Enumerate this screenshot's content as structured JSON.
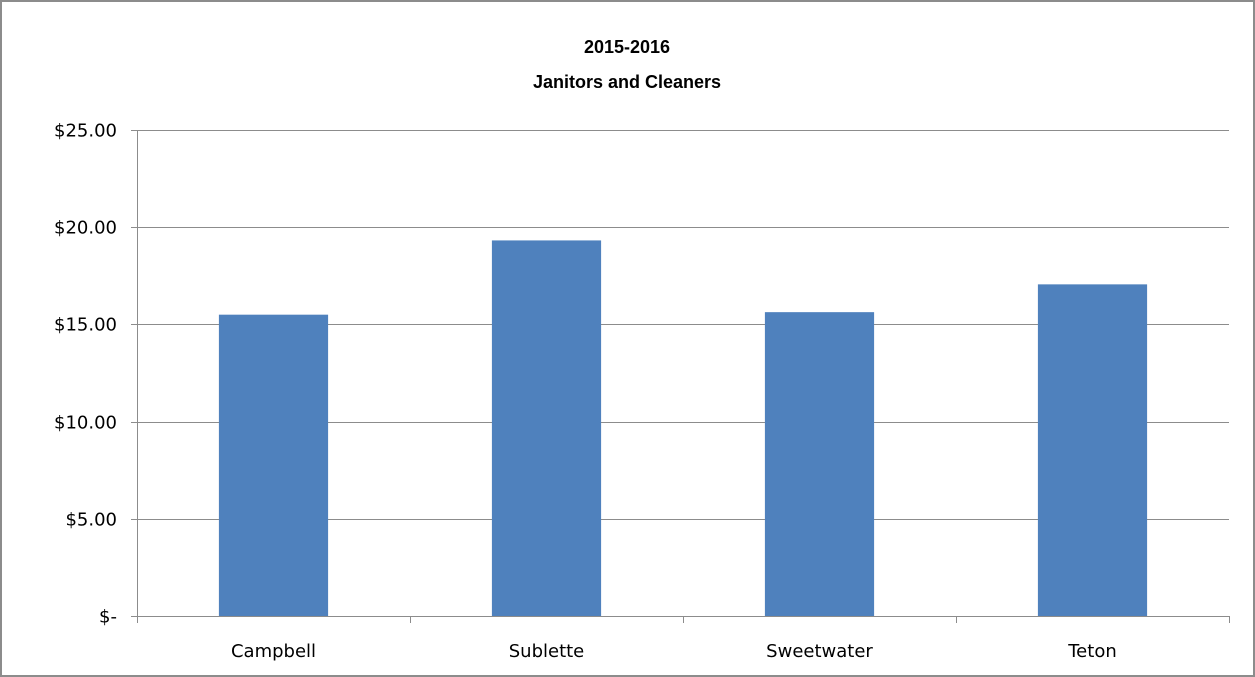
{
  "chart_data": {
    "type": "bar",
    "title": [
      "2015-2016",
      "Janitors and Cleaners"
    ],
    "categories": [
      "Campbell",
      "Sublette",
      "Sweetwater",
      "Teton"
    ],
    "values": [
      15.5,
      19.32,
      15.63,
      17.06
    ],
    "xlabel": "",
    "ylabel": "",
    "ylim": [
      0,
      25
    ],
    "yticks": [
      0,
      5,
      10,
      15,
      20,
      25
    ],
    "ytick_labels": [
      "$-",
      "$5.00",
      "$10.00",
      "$15.00",
      "$20.00",
      "$25.00"
    ],
    "grid": true,
    "legend": "none",
    "colors": {
      "bar": "#4f81bd",
      "gridline": "#8c8c8c",
      "axis": "#8c8c8c",
      "frame": "#8c8c8c"
    }
  }
}
